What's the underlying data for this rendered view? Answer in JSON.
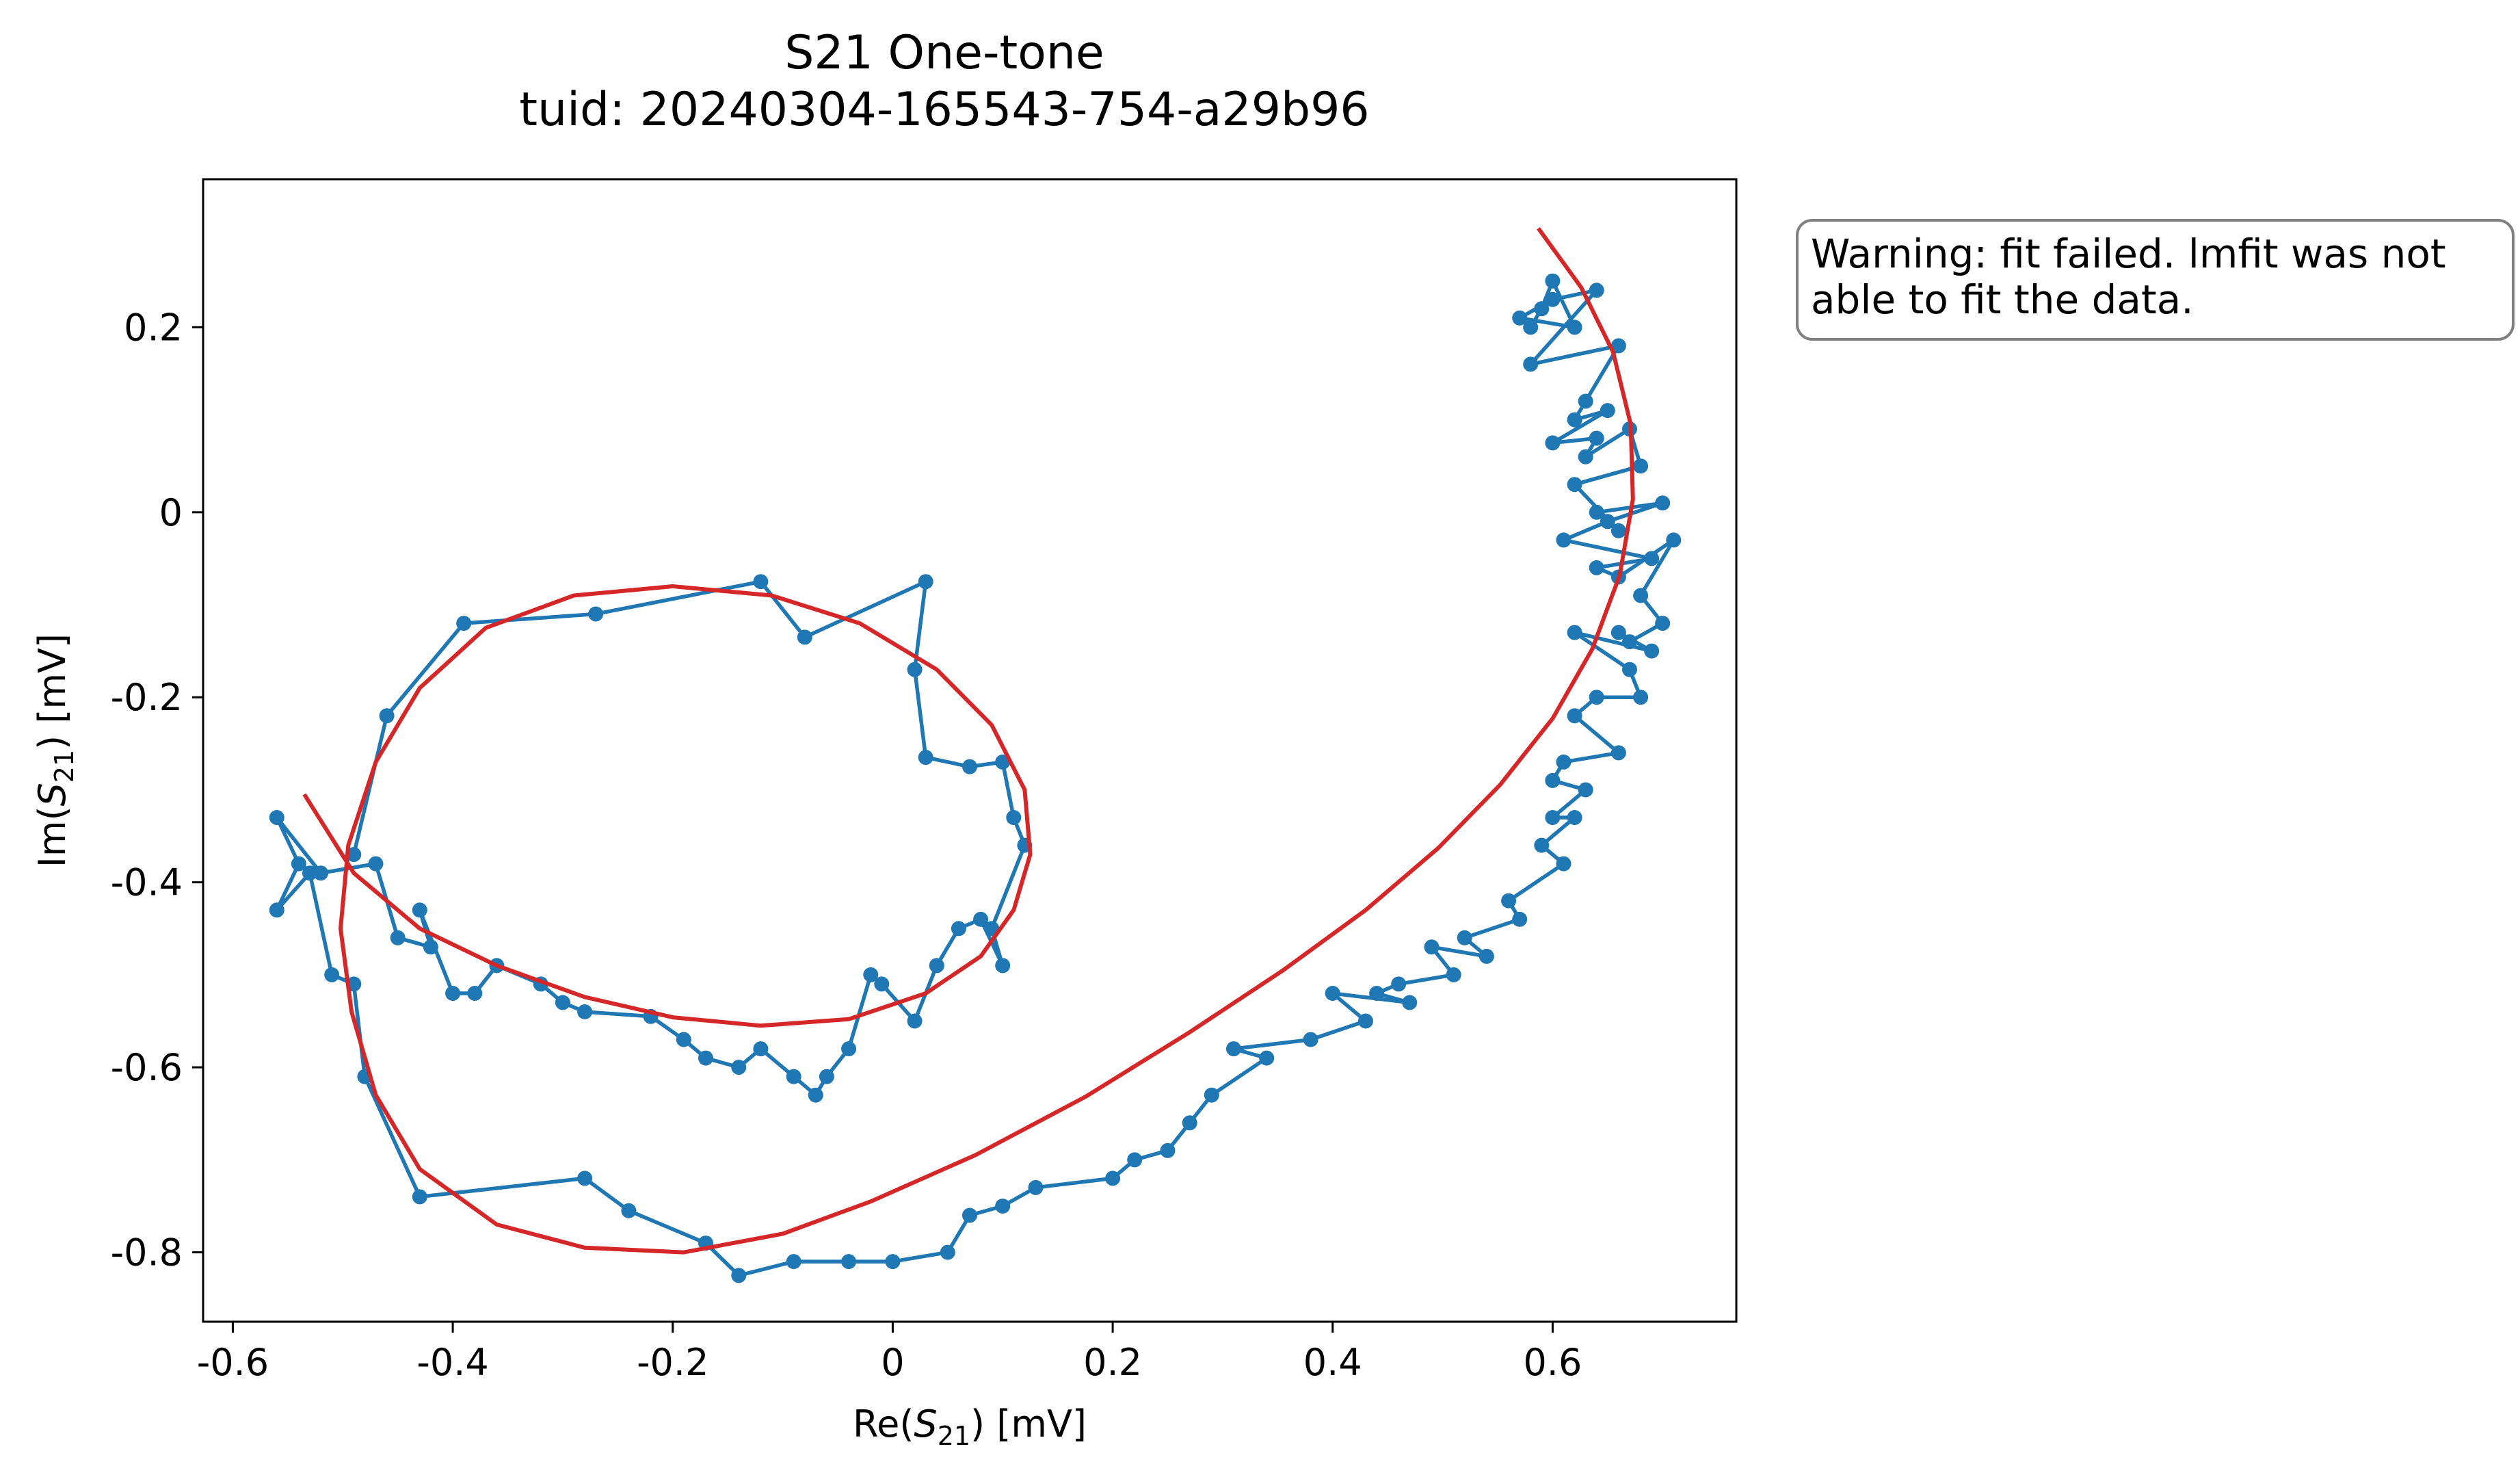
{
  "chart_data": {
    "type": "line",
    "title": "S21 One-tone",
    "subtitle": "tuid: 20240304-165543-754-a29b96",
    "xlabel": {
      "prefix": "Re(",
      "var": "S",
      "sub": "21",
      "suffix": ") [mV]"
    },
    "ylabel": {
      "prefix": "Im(",
      "var": "S",
      "sub": "21",
      "suffix": ") [mV]"
    },
    "xlim": [
      -0.627,
      0.767
    ],
    "ylim": [
      -0.875,
      0.36
    ],
    "xticks": [
      {
        "v": -0.6,
        "label": "-0.6"
      },
      {
        "v": -0.4,
        "label": "-0.4"
      },
      {
        "v": -0.2,
        "label": "-0.2"
      },
      {
        "v": 0,
        "label": "0"
      },
      {
        "v": 0.2,
        "label": "0.2"
      },
      {
        "v": 0.4,
        "label": "0.4"
      },
      {
        "v": 0.6,
        "label": "0.6"
      }
    ],
    "yticks": [
      {
        "v": 0.2,
        "label": "0.2"
      },
      {
        "v": 0,
        "label": "0"
      },
      {
        "v": -0.2,
        "label": "-0.2"
      },
      {
        "v": -0.4,
        "label": "-0.4"
      },
      {
        "v": -0.6,
        "label": "-0.6"
      },
      {
        "v": -0.8,
        "label": "-0.8"
      }
    ],
    "grid": false,
    "annotation": {
      "line1": "Warning: fit failed. lmfit was not",
      "line2": "able to fit the data."
    },
    "series": [
      {
        "kind": "data",
        "color": "#1f77b4",
        "marker": "circle",
        "points": [
          [
            0.58,
            0.2
          ],
          [
            0.59,
            0.22
          ],
          [
            0.6,
            0.25
          ],
          [
            0.62,
            0.2
          ],
          [
            0.57,
            0.21
          ],
          [
            0.6,
            0.23
          ],
          [
            0.64,
            0.24
          ],
          [
            0.58,
            0.16
          ],
          [
            0.66,
            0.18
          ],
          [
            0.63,
            0.12
          ],
          [
            0.62,
            0.1
          ],
          [
            0.65,
            0.11
          ],
          [
            0.6,
            0.075
          ],
          [
            0.64,
            0.08
          ],
          [
            0.63,
            0.06
          ],
          [
            0.67,
            0.09
          ],
          [
            0.68,
            0.05
          ],
          [
            0.62,
            0.03
          ],
          [
            0.66,
            -0.02
          ],
          [
            0.64,
            0.0
          ],
          [
            0.7,
            0.01
          ],
          [
            0.65,
            -0.01
          ],
          [
            0.61,
            -0.03
          ],
          [
            0.69,
            -0.05
          ],
          [
            0.64,
            -0.06
          ],
          [
            0.66,
            -0.07
          ],
          [
            0.71,
            -0.03
          ],
          [
            0.68,
            -0.09
          ],
          [
            0.7,
            -0.12
          ],
          [
            0.67,
            -0.14
          ],
          [
            0.66,
            -0.13
          ],
          [
            0.69,
            -0.15
          ],
          [
            0.62,
            -0.13
          ],
          [
            0.67,
            -0.17
          ],
          [
            0.68,
            -0.2
          ],
          [
            0.64,
            -0.2
          ],
          [
            0.62,
            -0.22
          ],
          [
            0.66,
            -0.26
          ],
          [
            0.61,
            -0.27
          ],
          [
            0.6,
            -0.29
          ],
          [
            0.63,
            -0.3
          ],
          [
            0.6,
            -0.33
          ],
          [
            0.62,
            -0.33
          ],
          [
            0.59,
            -0.36
          ],
          [
            0.61,
            -0.38
          ],
          [
            0.56,
            -0.42
          ],
          [
            0.57,
            -0.44
          ],
          [
            0.52,
            -0.46
          ],
          [
            0.54,
            -0.48
          ],
          [
            0.49,
            -0.47
          ],
          [
            0.51,
            -0.5
          ],
          [
            0.46,
            -0.51
          ],
          [
            0.44,
            -0.52
          ],
          [
            0.47,
            -0.53
          ],
          [
            0.4,
            -0.52
          ],
          [
            0.43,
            -0.55
          ],
          [
            0.38,
            -0.57
          ],
          [
            0.31,
            -0.58
          ],
          [
            0.34,
            -0.59
          ],
          [
            0.29,
            -0.63
          ],
          [
            0.27,
            -0.66
          ],
          [
            0.25,
            -0.69
          ],
          [
            0.22,
            -0.7
          ],
          [
            0.2,
            -0.72
          ],
          [
            0.13,
            -0.73
          ],
          [
            0.1,
            -0.75
          ],
          [
            0.07,
            -0.76
          ],
          [
            0.05,
            -0.8
          ],
          [
            0.0,
            -0.81
          ],
          [
            -0.04,
            -0.81
          ],
          [
            -0.09,
            -0.81
          ],
          [
            -0.14,
            -0.825
          ],
          [
            -0.17,
            -0.79
          ],
          [
            -0.24,
            -0.755
          ],
          [
            -0.28,
            -0.72
          ],
          [
            -0.43,
            -0.74
          ],
          [
            -0.48,
            -0.61
          ],
          [
            -0.49,
            -0.51
          ],
          [
            -0.51,
            -0.5
          ],
          [
            -0.53,
            -0.39
          ],
          [
            -0.56,
            -0.43
          ],
          [
            -0.54,
            -0.38
          ],
          [
            -0.56,
            -0.33
          ],
          [
            -0.52,
            -0.39
          ],
          [
            -0.47,
            -0.38
          ],
          [
            -0.45,
            -0.46
          ],
          [
            -0.42,
            -0.47
          ],
          [
            -0.43,
            -0.43
          ],
          [
            -0.4,
            -0.52
          ],
          [
            -0.38,
            -0.52
          ],
          [
            -0.36,
            -0.49
          ],
          [
            -0.32,
            -0.51
          ],
          [
            -0.3,
            -0.53
          ],
          [
            -0.28,
            -0.54
          ],
          [
            -0.22,
            -0.545
          ],
          [
            -0.19,
            -0.57
          ],
          [
            -0.17,
            -0.59
          ],
          [
            -0.14,
            -0.6
          ],
          [
            -0.12,
            -0.58
          ],
          [
            -0.09,
            -0.61
          ],
          [
            -0.07,
            -0.63
          ],
          [
            -0.06,
            -0.61
          ],
          [
            -0.04,
            -0.58
          ],
          [
            -0.02,
            -0.5
          ],
          [
            -0.01,
            -0.51
          ],
          [
            0.02,
            -0.55
          ],
          [
            0.04,
            -0.49
          ],
          [
            0.06,
            -0.45
          ],
          [
            0.08,
            -0.44
          ],
          [
            0.1,
            -0.49
          ],
          [
            0.09,
            -0.45
          ],
          [
            0.12,
            -0.36
          ],
          [
            0.11,
            -0.33
          ],
          [
            0.1,
            -0.27
          ],
          [
            0.07,
            -0.275
          ],
          [
            0.03,
            -0.265
          ],
          [
            0.02,
            -0.17
          ],
          [
            0.03,
            -0.075
          ],
          [
            -0.08,
            -0.135
          ],
          [
            -0.12,
            -0.075
          ],
          [
            -0.27,
            -0.11
          ],
          [
            -0.39,
            -0.12
          ],
          [
            -0.46,
            -0.22
          ],
          [
            -0.49,
            -0.37
          ]
        ]
      },
      {
        "kind": "fit",
        "color": "#d62728",
        "points": [
          [
            0.587,
            0.307
          ],
          [
            0.626,
            0.243
          ],
          [
            0.655,
            0.173
          ],
          [
            0.671,
            0.095
          ],
          [
            0.673,
            0.014
          ],
          [
            0.661,
            -0.068
          ],
          [
            0.636,
            -0.148
          ],
          [
            0.6,
            -0.223
          ],
          [
            0.552,
            -0.295
          ],
          [
            0.496,
            -0.363
          ],
          [
            0.43,
            -0.43
          ],
          [
            0.355,
            -0.495
          ],
          [
            0.27,
            -0.562
          ],
          [
            0.175,
            -0.632
          ],
          [
            0.075,
            -0.695
          ],
          [
            -0.02,
            -0.745
          ],
          [
            -0.1,
            -0.78
          ],
          [
            -0.19,
            -0.8
          ],
          [
            -0.28,
            -0.795
          ],
          [
            -0.36,
            -0.77
          ],
          [
            -0.43,
            -0.71
          ],
          [
            -0.47,
            -0.63
          ],
          [
            -0.492,
            -0.54
          ],
          [
            -0.502,
            -0.45
          ],
          [
            -0.495,
            -0.36
          ],
          [
            -0.47,
            -0.27
          ],
          [
            -0.43,
            -0.19
          ],
          [
            -0.37,
            -0.125
          ],
          [
            -0.29,
            -0.09
          ],
          [
            -0.2,
            -0.08
          ],
          [
            -0.11,
            -0.09
          ],
          [
            -0.03,
            -0.12
          ],
          [
            0.04,
            -0.17
          ],
          [
            0.09,
            -0.23
          ],
          [
            0.12,
            -0.3
          ],
          [
            0.125,
            -0.37
          ],
          [
            0.11,
            -0.43
          ],
          [
            0.08,
            -0.48
          ],
          [
            0.03,
            -0.52
          ],
          [
            -0.04,
            -0.548
          ],
          [
            -0.12,
            -0.555
          ],
          [
            -0.2,
            -0.546
          ],
          [
            -0.28,
            -0.524
          ],
          [
            -0.36,
            -0.49
          ],
          [
            -0.43,
            -0.45
          ],
          [
            -0.49,
            -0.39
          ],
          [
            -0.535,
            -0.305
          ]
        ]
      }
    ]
  }
}
